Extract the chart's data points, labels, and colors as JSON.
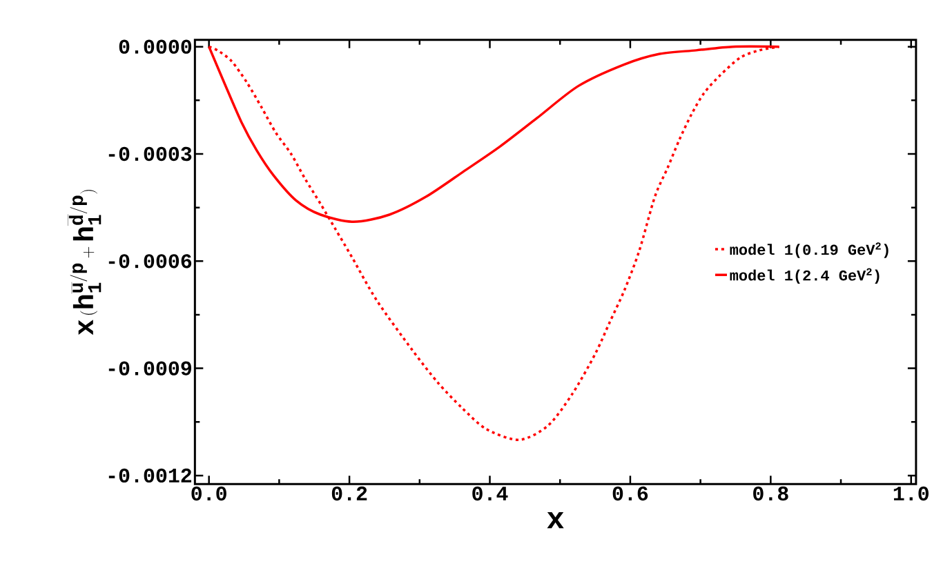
{
  "chart_data": {
    "type": "line",
    "xlabel": "x",
    "ylabel": "\\mathbf{x\\,(h_1^{\\overline{u}/p}+h_1^{\\overline{d}/p})}",
    "xlim": [
      -0.02,
      1.007
    ],
    "ylim": [
      -0.001224,
      1.9e-05
    ],
    "xticks": [
      {
        "value": 0,
        "label": "0.0"
      },
      {
        "value": 0.2,
        "label": "0.2"
      },
      {
        "value": 0.4,
        "label": "0.4"
      },
      {
        "value": 0.6,
        "label": "0.6"
      },
      {
        "value": 0.8,
        "label": "0.8"
      },
      {
        "value": 1,
        "label": "1.0"
      }
    ],
    "yticks": [
      {
        "value": 0,
        "label": "0.0000"
      },
      {
        "value": -0.0003,
        "label": "-0.0003"
      },
      {
        "value": -0.0006,
        "label": "-0.0006"
      },
      {
        "value": -0.0009,
        "label": "-0.0009"
      },
      {
        "value": -0.0012,
        "label": "-0.0012"
      }
    ],
    "legend": "right",
    "series": [
      {
        "name": "model 1(0.19 GeV$^{2}$)",
        "color": "#ff0000",
        "line_style": "dotted",
        "x": [
          0,
          0.012,
          0.032,
          0.054,
          0.075,
          0.095,
          0.117,
          0.137,
          0.159,
          0.18,
          0.204,
          0.239,
          0.29,
          0.326,
          0.36,
          0.395,
          0.442,
          0.483,
          0.518,
          0.55,
          0.571,
          0.592,
          0.613,
          0.635,
          0.653,
          0.67,
          0.687,
          0.705,
          0.728,
          0.757,
          0.784,
          0.812
        ],
        "values": [
          0,
          -1e-05,
          -4e-05,
          -0.0001,
          -0.00017,
          -0.00024,
          -0.0003,
          -0.00037,
          -0.00044,
          -0.00051,
          -0.00059,
          -0.00071,
          -0.00085,
          -0.00094,
          -0.00101,
          -0.00107,
          -0.0011,
          -0.00106,
          -0.00097,
          -0.00086,
          -0.00077,
          -0.00068,
          -0.00057,
          -0.00042,
          -0.00034,
          -0.00026,
          -0.00019,
          -0.00013,
          -8e-05,
          -3e-05,
          -1e-05,
          0
        ]
      },
      {
        "name": "model 1(2.4 GeV$^{2}$)",
        "color": "#ff0000",
        "line_style": "solid",
        "x": [
          0,
          0.0216,
          0.046,
          0.068,
          0.092,
          0.124,
          0.159,
          0.206,
          0.257,
          0.309,
          0.362,
          0.414,
          0.467,
          0.526,
          0.591,
          0.642,
          0.694,
          0.746,
          0.812
        ],
        "values": [
          0,
          -0.0001,
          -0.00021,
          -0.00029,
          -0.00036,
          -0.00043,
          -0.00047,
          -0.00049,
          -0.00047,
          -0.00042,
          -0.00035,
          -0.00028,
          -0.0002,
          -0.00011,
          -5e-05,
          -2e-05,
          -1e-05,
          0,
          0
        ]
      }
    ]
  }
}
